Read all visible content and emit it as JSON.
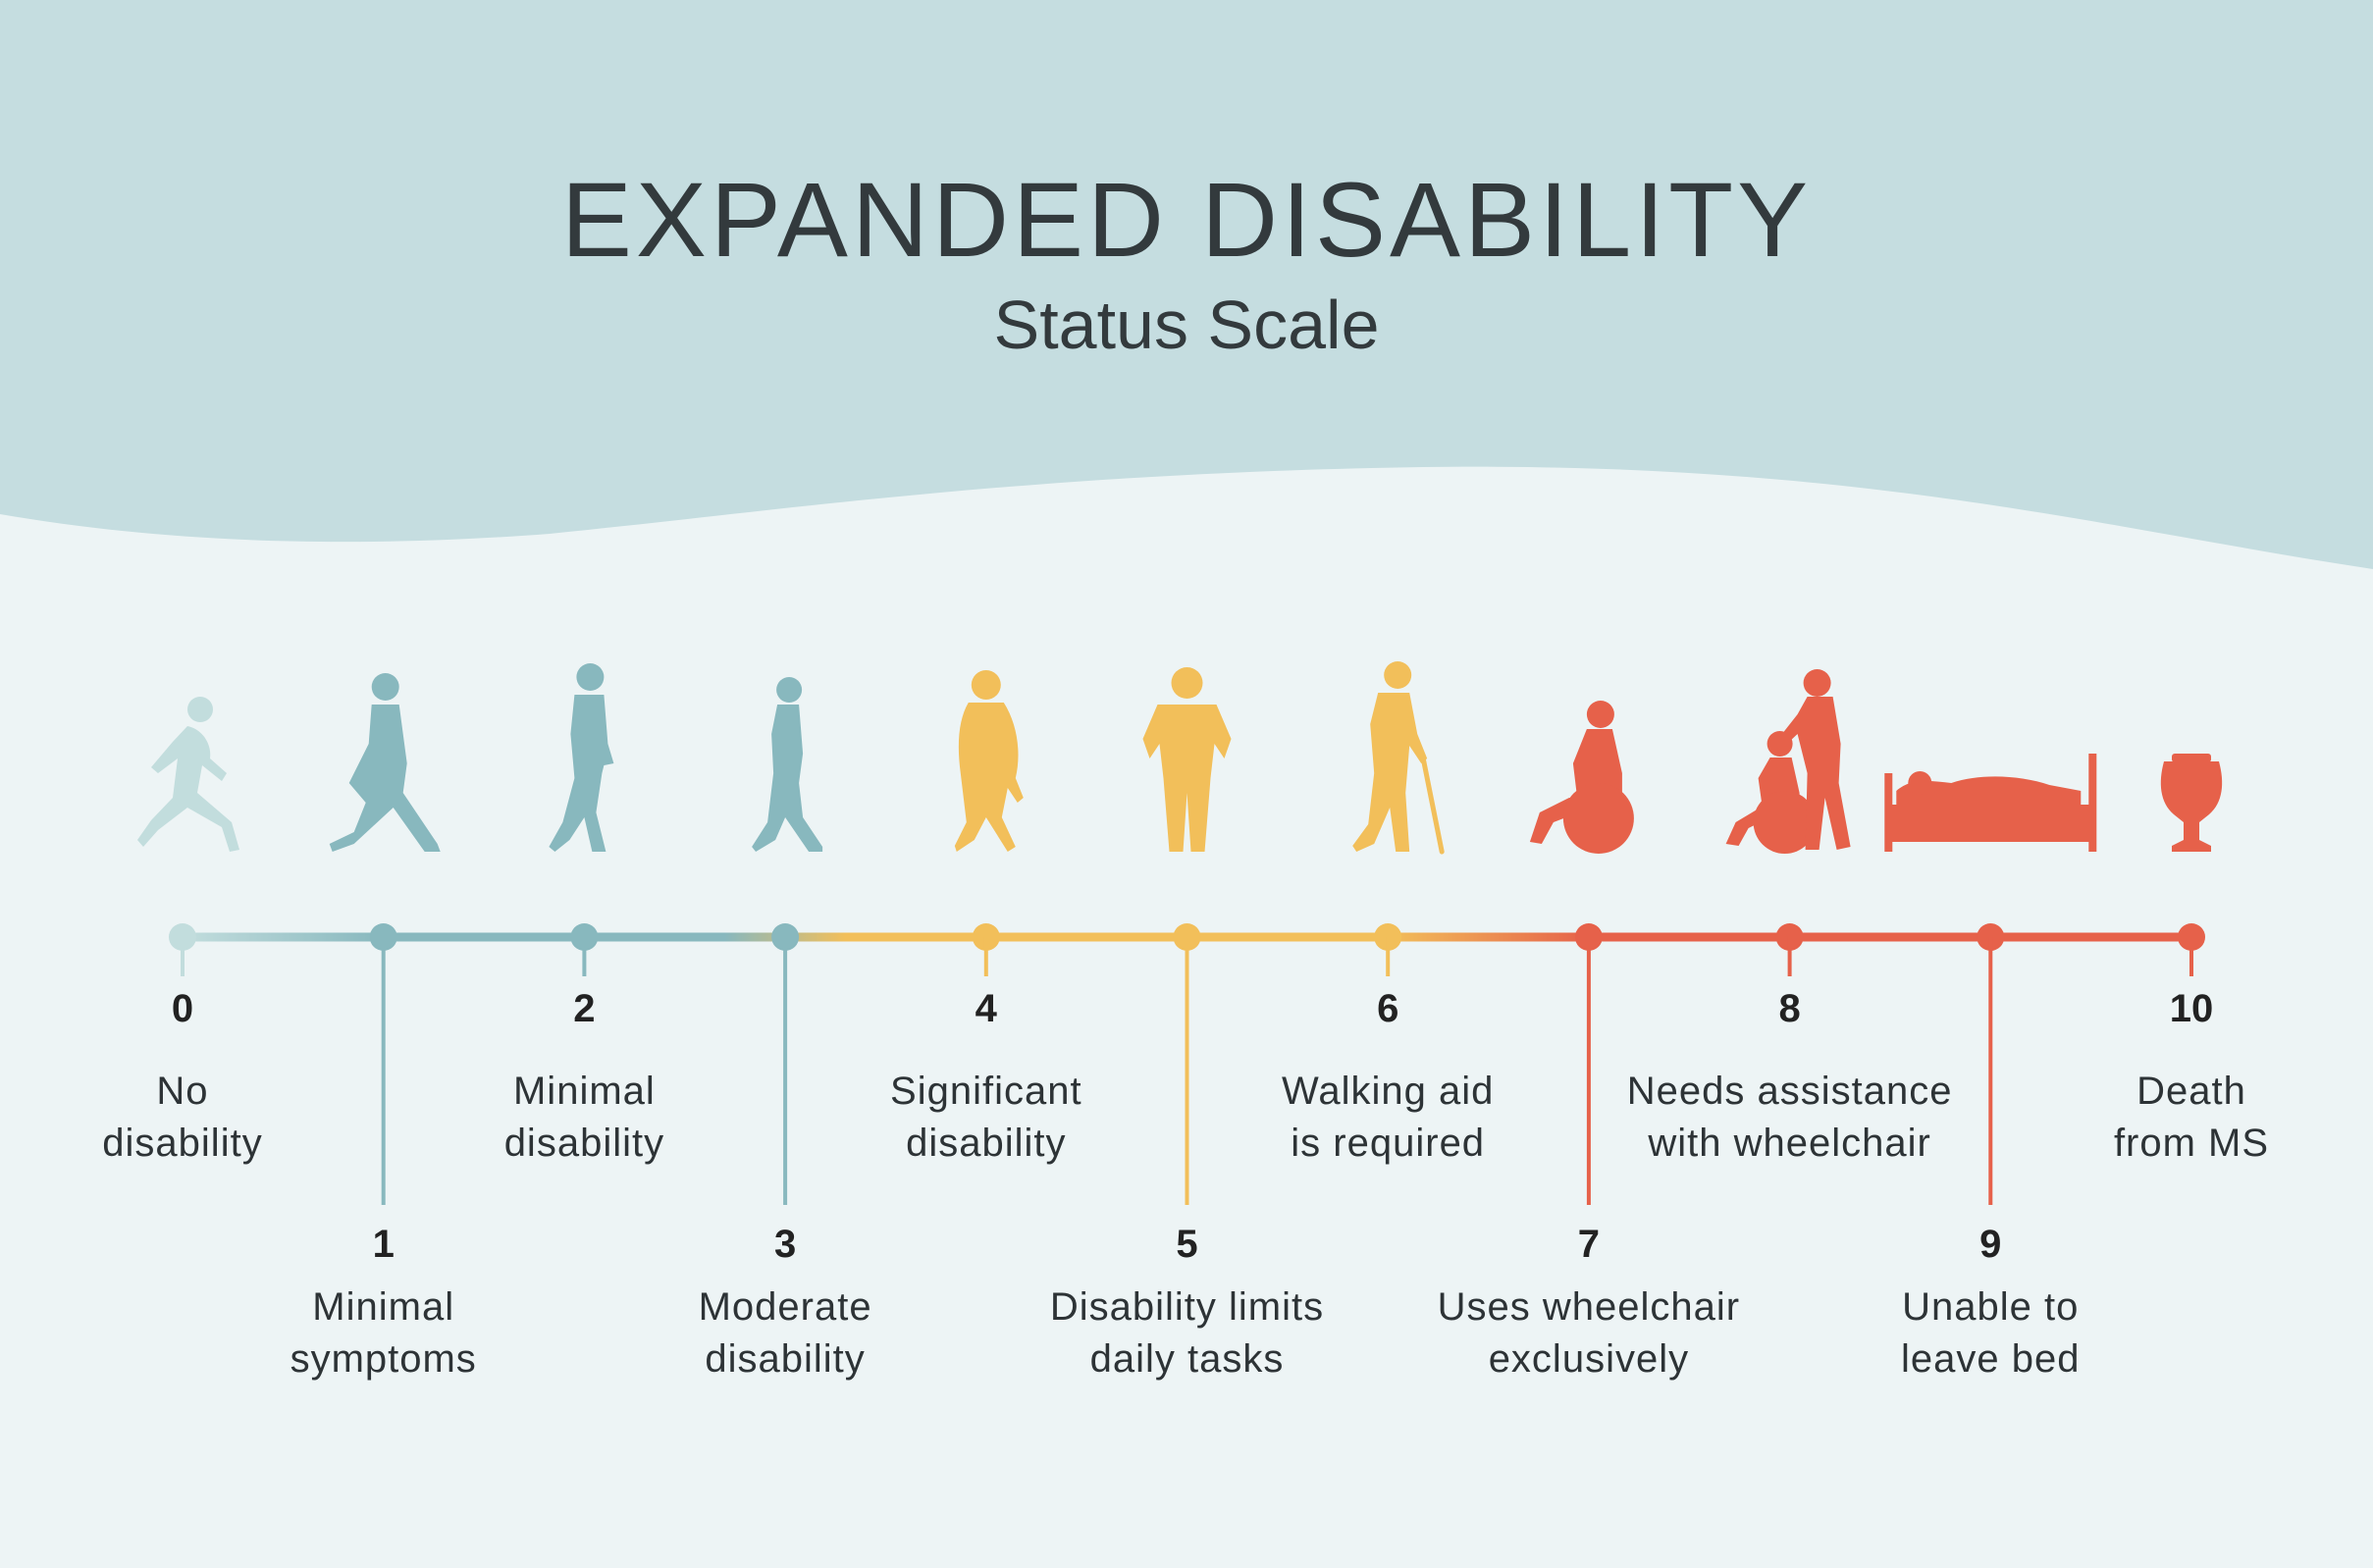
{
  "header": {
    "title": "EXPANDED DISABILITY",
    "subtitle": "Status Scale"
  },
  "colors": {
    "header_bg": "#c5dde0",
    "page_bg": "#edf4f5",
    "teal_light": "#c2dddd",
    "teal": "#88b8be",
    "yellow": "#f2bf5a",
    "red": "#e6614a",
    "text": "#333a3d"
  },
  "steps": [
    {
      "value": "0",
      "line1": "No",
      "line2": "disability",
      "icon": "runner-icon",
      "color": "#c2dddd"
    },
    {
      "value": "1",
      "line1": "Minimal",
      "line2": "symptoms",
      "icon": "walking-person-icon",
      "color": "#88b8be"
    },
    {
      "value": "2",
      "line1": "Minimal",
      "line2": "disability",
      "icon": "walking-man-icon",
      "color": "#88b8be"
    },
    {
      "value": "3",
      "line1": "Moderate",
      "line2": "disability",
      "icon": "walking-woman-icon",
      "color": "#88b8be"
    },
    {
      "value": "4",
      "line1": "Significant",
      "line2": "disability",
      "icon": "heavy-walking-person-icon",
      "color": "#f2bf5a"
    },
    {
      "value": "5",
      "line1": "Disability limits",
      "line2": "daily tasks",
      "icon": "standing-person-icon",
      "color": "#f2bf5a"
    },
    {
      "value": "6",
      "line1": "Walking aid",
      "line2": "is required",
      "icon": "person-with-cane-icon",
      "color": "#f2bf5a"
    },
    {
      "value": "7",
      "line1": "Uses wheelchair",
      "line2": "exclusively",
      "icon": "wheelchair-user-icon",
      "color": "#e6614a"
    },
    {
      "value": "8",
      "line1": "Needs assistance",
      "line2": "with wheelchair",
      "icon": "assisted-wheelchair-icon",
      "color": "#e6614a"
    },
    {
      "value": "9",
      "line1": "Unable to",
      "line2": "leave bed",
      "icon": "person-in-bed-icon",
      "color": "#e6614a"
    },
    {
      "value": "10",
      "line1": "Death",
      "line2": "from MS",
      "icon": "urn-icon",
      "color": "#e6614a"
    }
  ]
}
